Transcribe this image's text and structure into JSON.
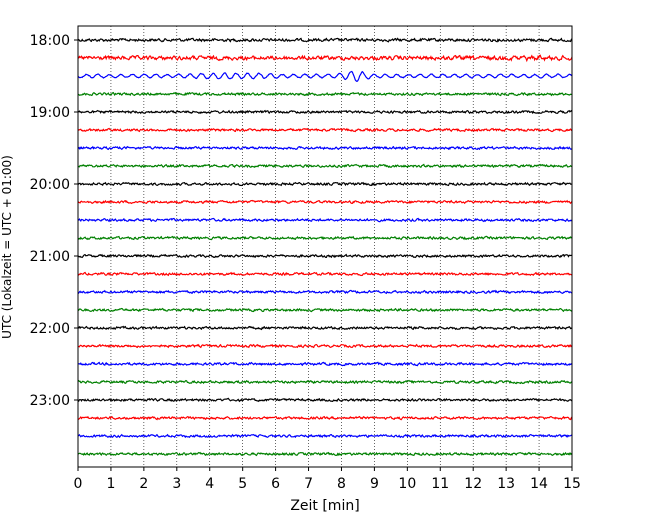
{
  "chart_data": {
    "type": "line",
    "title": "",
    "xlabel": "Zeit  [min]",
    "ylabel": "UTC (Lokalzeit = UTC + 01:00)",
    "xlim": [
      0,
      15
    ],
    "x_ticks": [
      "0",
      "1",
      "2",
      "3",
      "4",
      "5",
      "6",
      "7",
      "8",
      "9",
      "10",
      "11",
      "12",
      "13",
      "14",
      "15"
    ],
    "y_ticks": [
      "18:00",
      "19:00",
      "20:00",
      "21:00",
      "22:00",
      "23:00"
    ],
    "y_tick_offsets_min": [
      0,
      60,
      120,
      180,
      240,
      300
    ],
    "trace_interval_min": 15,
    "trace_start": "18:00",
    "trace_count": 24,
    "x_grid": "dotted vertical at each minute",
    "legend": "none",
    "trace_colors": [
      "#000000",
      "#ff0000",
      "#0000ff",
      "#008000"
    ],
    "traces_note_amplitude": [
      1.2,
      1.6,
      3.2,
      1.0,
      1.0,
      1.0,
      1.0,
      1.0,
      1.0,
      1.0,
      1.0,
      1.0,
      1.0,
      1.0,
      1.0,
      1.0,
      1.0,
      1.0,
      1.0,
      1.0,
      1.0,
      1.0,
      1.0,
      1.0
    ]
  }
}
